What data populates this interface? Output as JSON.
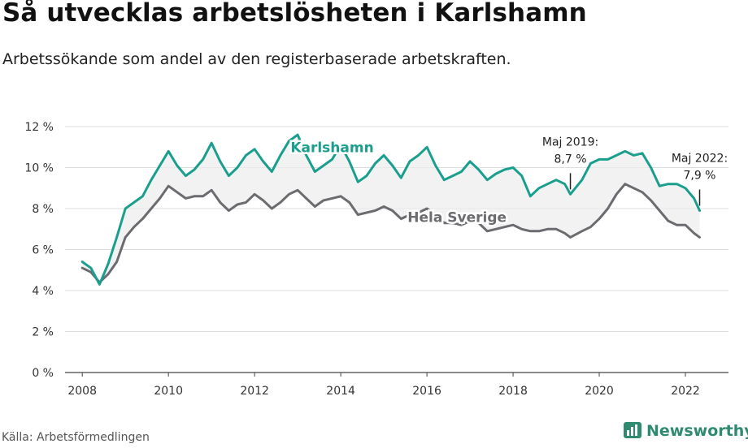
{
  "title": "Så utvecklas arbetslösheten i Karlshamn",
  "subtitle": "Arbetssökande som andel av den registerbaserade arbetskraften.",
  "source": "Källa: Arbetsförmedlingen",
  "brand": "Newsworthy",
  "colors": {
    "karlshamn": "#1a9e8e",
    "sverige": "#6b6b70",
    "band": "#ededed",
    "grid": "#dddddd",
    "brand": "#2e8b6f"
  },
  "chart_data": {
    "type": "line",
    "title": "Så utvecklas arbetslösheten i Karlshamn",
    "ylabel": "Arbetssökande som andel av den registerbaserade arbetskraften",
    "ylim": [
      0,
      12
    ],
    "xlim": [
      2007.6,
      2023.0
    ],
    "x_ticks": [
      2008,
      2010,
      2012,
      2014,
      2016,
      2018,
      2020,
      2022
    ],
    "x_tick_labels": [
      "2008",
      "2010",
      "2012",
      "2014",
      "2016",
      "2018",
      "2020",
      "2022"
    ],
    "y_ticks": [
      0,
      2,
      4,
      6,
      8,
      10,
      12
    ],
    "y_tick_labels": [
      "0 %",
      "2 %",
      "4 %",
      "6 %",
      "8 %",
      "10 %",
      "12 %"
    ],
    "grid": true,
    "series": [
      {
        "name": "Karlshamn",
        "label": "Karlshamn",
        "x": [
          2008.0,
          2008.2,
          2008.4,
          2008.6,
          2008.8,
          2009.0,
          2009.2,
          2009.4,
          2009.6,
          2009.8,
          2010.0,
          2010.2,
          2010.4,
          2010.6,
          2010.8,
          2011.0,
          2011.2,
          2011.4,
          2011.6,
          2011.8,
          2012.0,
          2012.2,
          2012.4,
          2012.6,
          2012.8,
          2013.0,
          2013.2,
          2013.4,
          2013.6,
          2013.8,
          2014.0,
          2014.2,
          2014.4,
          2014.6,
          2014.8,
          2015.0,
          2015.2,
          2015.4,
          2015.6,
          2015.8,
          2016.0,
          2016.2,
          2016.4,
          2016.6,
          2016.8,
          2017.0,
          2017.2,
          2017.4,
          2017.6,
          2017.8,
          2018.0,
          2018.2,
          2018.4,
          2018.6,
          2018.8,
          2019.0,
          2019.2,
          2019.33,
          2019.6,
          2019.8,
          2020.0,
          2020.2,
          2020.4,
          2020.6,
          2020.8,
          2021.0,
          2021.2,
          2021.4,
          2021.6,
          2021.8,
          2022.0,
          2022.2,
          2022.33
        ],
        "values": [
          5.4,
          5.1,
          4.3,
          5.3,
          6.6,
          8.0,
          8.3,
          8.6,
          9.4,
          10.1,
          10.8,
          10.1,
          9.6,
          9.9,
          10.4,
          11.2,
          10.3,
          9.6,
          10.0,
          10.6,
          10.9,
          10.3,
          9.8,
          10.6,
          11.3,
          11.6,
          10.6,
          9.8,
          10.1,
          10.4,
          11.1,
          10.3,
          9.3,
          9.6,
          10.2,
          10.6,
          10.1,
          9.5,
          10.3,
          10.6,
          11.0,
          10.1,
          9.4,
          9.6,
          9.8,
          10.3,
          9.9,
          9.4,
          9.7,
          9.9,
          10.0,
          9.6,
          8.6,
          9.0,
          9.2,
          9.4,
          9.2,
          8.7,
          9.4,
          10.2,
          10.4,
          10.4,
          10.6,
          10.8,
          10.6,
          10.7,
          10.0,
          9.1,
          9.2,
          9.2,
          9.0,
          8.5,
          7.9
        ]
      },
      {
        "name": "Hela Sverige",
        "label": "Hela Sverige",
        "x": [
          2008.0,
          2008.2,
          2008.4,
          2008.6,
          2008.8,
          2009.0,
          2009.2,
          2009.4,
          2009.6,
          2009.8,
          2010.0,
          2010.2,
          2010.4,
          2010.6,
          2010.8,
          2011.0,
          2011.2,
          2011.4,
          2011.6,
          2011.8,
          2012.0,
          2012.2,
          2012.4,
          2012.6,
          2012.8,
          2013.0,
          2013.2,
          2013.4,
          2013.6,
          2013.8,
          2014.0,
          2014.2,
          2014.4,
          2014.6,
          2014.8,
          2015.0,
          2015.2,
          2015.4,
          2015.6,
          2015.8,
          2016.0,
          2016.2,
          2016.4,
          2016.6,
          2016.8,
          2017.0,
          2017.2,
          2017.4,
          2017.6,
          2017.8,
          2018.0,
          2018.2,
          2018.4,
          2018.6,
          2018.8,
          2019.0,
          2019.2,
          2019.33,
          2019.6,
          2019.8,
          2020.0,
          2020.2,
          2020.4,
          2020.6,
          2020.8,
          2021.0,
          2021.2,
          2021.4,
          2021.6,
          2021.8,
          2022.0,
          2022.2,
          2022.33
        ],
        "values": [
          5.1,
          4.9,
          4.4,
          4.8,
          5.4,
          6.6,
          7.1,
          7.5,
          8.0,
          8.5,
          9.1,
          8.8,
          8.5,
          8.6,
          8.6,
          8.9,
          8.3,
          7.9,
          8.2,
          8.3,
          8.7,
          8.4,
          8.0,
          8.3,
          8.7,
          8.9,
          8.5,
          8.1,
          8.4,
          8.5,
          8.6,
          8.3,
          7.7,
          7.8,
          7.9,
          8.1,
          7.9,
          7.5,
          7.7,
          7.8,
          8.0,
          7.7,
          7.3,
          7.3,
          7.2,
          7.4,
          7.3,
          6.9,
          7.0,
          7.1,
          7.2,
          7.0,
          6.9,
          6.9,
          7.0,
          7.0,
          6.8,
          6.6,
          6.9,
          7.1,
          7.5,
          8.0,
          8.7,
          9.2,
          9.0,
          8.8,
          8.4,
          7.9,
          7.4,
          7.2,
          7.2,
          6.8,
          6.6
        ]
      }
    ],
    "annotations": [
      {
        "line1": "Maj 2019:",
        "line2": "8,7 %",
        "x": 2019.33,
        "y": 8.7
      },
      {
        "line1": "Maj 2022:",
        "line2": "7,9 %",
        "x": 2022.33,
        "y": 7.9
      }
    ]
  }
}
